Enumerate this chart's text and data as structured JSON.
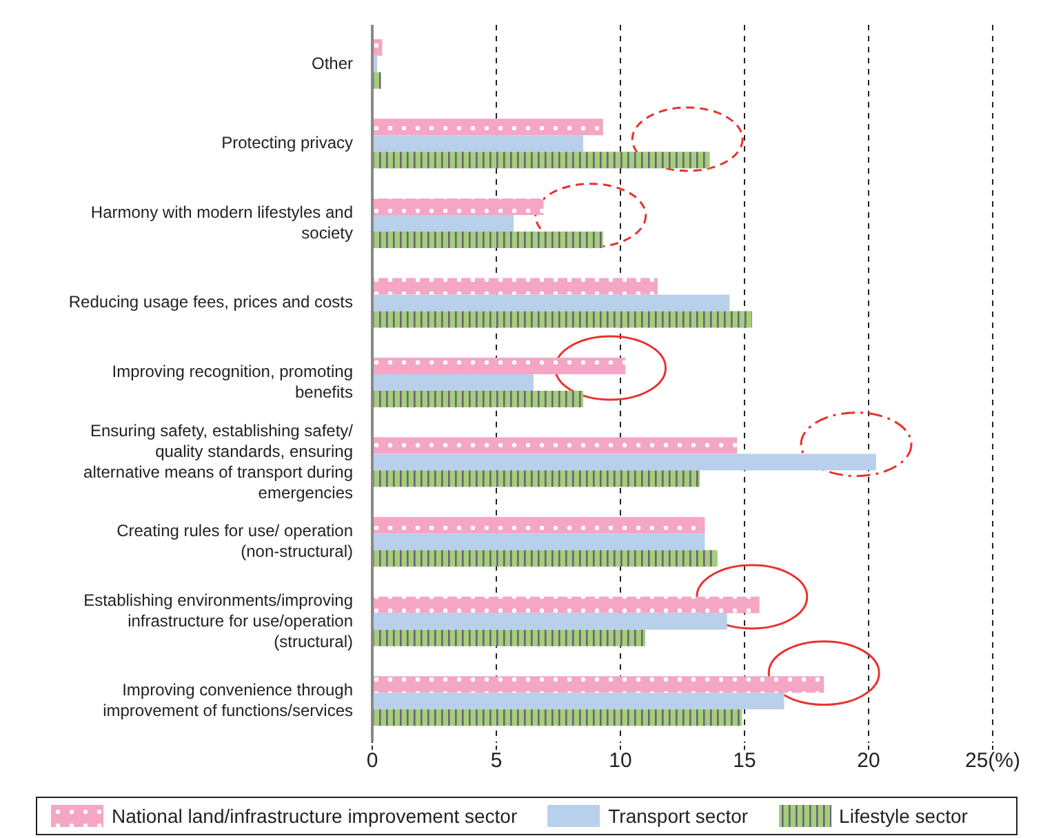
{
  "chart_data": {
    "type": "bar",
    "orientation": "horizontal",
    "categories": [
      "Other",
      "Protecting privacy",
      "Harmony with modern lifestyles and society",
      "Reducing usage fees, prices and costs",
      "Improving recognition, promoting benefits",
      "Ensuring safety, establishing safety/ quality standards, ensuring alternative means of transport during emergencies",
      "Creating rules for use/ operation (non-structural)",
      "Establishing environments/improving infrastructure for use/operation (structural)",
      "Improving convenience through improvement of functions/services"
    ],
    "series": [
      {
        "name": "National land/infrastructure improvement sector",
        "color": "#f4a6c4",
        "values": [
          0.4,
          9.3,
          6.9,
          11.5,
          10.2,
          14.7,
          13.4,
          15.6,
          18.2
        ]
      },
      {
        "name": "Transport sector",
        "color": "#b9d0ec",
        "values": [
          0.2,
          8.5,
          5.7,
          14.4,
          6.5,
          20.3,
          13.4,
          14.3,
          16.6
        ]
      },
      {
        "name": "Lifestyle sector",
        "color": "#a3cf78",
        "values": [
          0.35,
          13.6,
          9.3,
          15.3,
          8.5,
          13.2,
          13.9,
          11.0,
          14.9
        ]
      }
    ],
    "xlim": [
      0,
      25
    ],
    "xticks": [
      0,
      5,
      10,
      15,
      20,
      {
        "value": 25,
        "label": "25(%)"
      }
    ],
    "grid": "x",
    "legend": "bottom"
  }
}
